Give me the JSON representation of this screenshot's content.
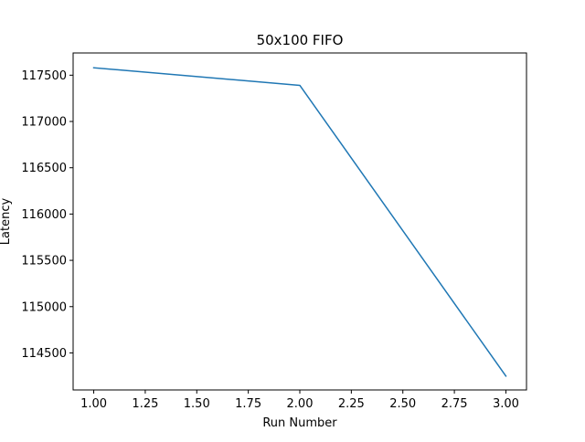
{
  "chart_data": {
    "type": "line",
    "title": "50x100 FIFO",
    "xlabel": "Run Number",
    "ylabel": "Latency",
    "xlim": [
      0.9,
      3.1
    ],
    "ylim": [
      114100,
      117740
    ],
    "x_ticks": [
      1.0,
      1.25,
      1.5,
      1.75,
      2.0,
      2.25,
      2.5,
      2.75,
      3.0
    ],
    "x_tick_labels": [
      "1.00",
      "1.25",
      "1.50",
      "1.75",
      "2.00",
      "2.25",
      "2.50",
      "2.75",
      "3.00"
    ],
    "y_ticks": [
      114500,
      115000,
      115500,
      116000,
      116500,
      117000,
      117500
    ],
    "y_tick_labels": [
      "114500",
      "115000",
      "115500",
      "116000",
      "116500",
      "117000",
      "117500"
    ],
    "grid": false,
    "series": [
      {
        "x": [
          1.0,
          2.0,
          3.0
        ],
        "y": [
          117580,
          117390,
          114250
        ],
        "color": "#1f77b4"
      }
    ]
  }
}
